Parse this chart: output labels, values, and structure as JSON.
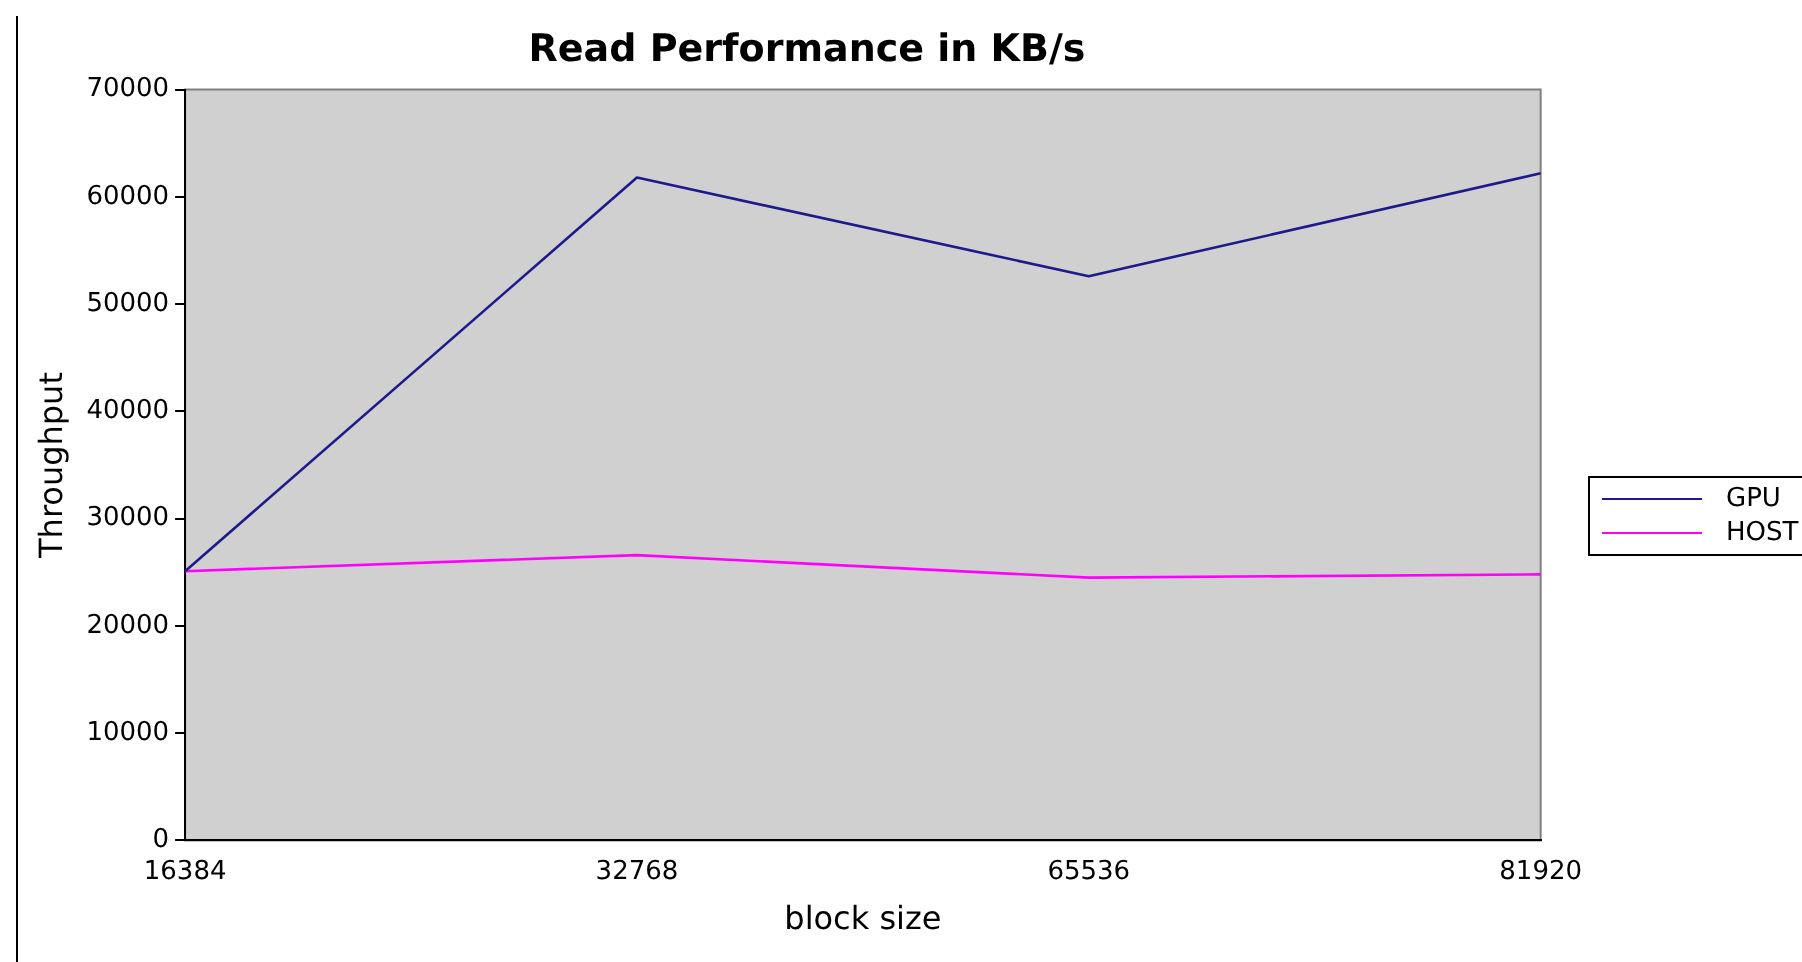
{
  "chart_data": {
    "type": "line",
    "title": "Read Performance in KB/s",
    "xlabel": "block size",
    "ylabel": "Throughput",
    "categories": [
      "16384",
      "32768",
      "65536",
      "81920"
    ],
    "series": [
      {
        "name": "GPU",
        "color": "#1f1a8c",
        "values": [
          25100,
          61800,
          52600,
          62200
        ]
      },
      {
        "name": "HOST",
        "color": "#ff00ff",
        "values": [
          25100,
          26600,
          24500,
          24800
        ]
      }
    ],
    "ylim": [
      0,
      70000
    ],
    "yticks": [
      0,
      10000,
      20000,
      30000,
      40000,
      50000,
      60000,
      70000
    ],
    "grid": false,
    "legend": "right",
    "marker": "none"
  }
}
